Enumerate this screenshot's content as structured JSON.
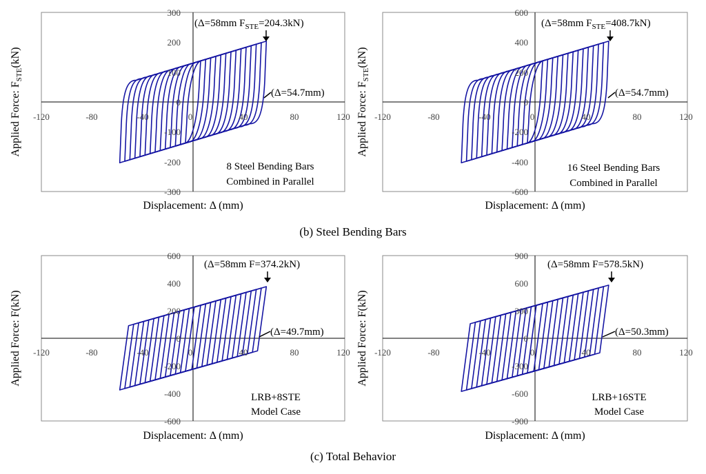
{
  "captions": {
    "steel": "(b) Steel Bending Bars",
    "total": "(c) Total Behavior"
  },
  "colors": {
    "loop": "#1515a3",
    "frame": "#8a8a8a",
    "axis": "#000000"
  },
  "chart_data": [
    {
      "id": "p1",
      "type": "line",
      "title": "",
      "xlabel": "Displacement: Δ (mm)",
      "ylabel_main": "Applied Force: F",
      "ylabel_sub": "STE",
      "ylabel_tail": "(kN)",
      "xlim": [
        -120,
        120
      ],
      "ylim": [
        -300,
        300
      ],
      "xticks": [
        -120,
        -80,
        -40,
        0,
        40,
        80,
        120
      ],
      "yticks": [
        300,
        200,
        100,
        0,
        -100,
        -200,
        -300
      ],
      "annotation_peak": {
        "pre": "(Δ=58mm F",
        "sub": "STE",
        "post": "=204.3kN)"
      },
      "annotation_zero": "(Δ=54.7mm)",
      "note_lines": [
        "8 Steel Bending Bars",
        "Combined in Parallel"
      ],
      "peak": [
        58,
        204.3
      ],
      "zero_cross": 54.7,
      "loop_params": {
        "k": 1.27,
        "b": 130,
        "amplitudes": [
          6,
          10,
          14,
          18,
          22,
          26,
          30,
          34,
          38,
          42,
          46,
          50,
          54,
          58
        ],
        "offset_x": 1,
        "smooth": true
      }
    },
    {
      "id": "p2",
      "type": "line",
      "title": "",
      "xlabel": "Displacement: Δ (mm)",
      "ylabel_main": "Applied Force: F",
      "ylabel_sub": "STE",
      "ylabel_tail": "(kN)",
      "xlim": [
        -120,
        120
      ],
      "ylim": [
        -600,
        600
      ],
      "xticks": [
        -120,
        -80,
        -40,
        0,
        40,
        80,
        120
      ],
      "yticks": [
        600,
        400,
        200,
        0,
        -200,
        -400,
        -600
      ],
      "annotation_peak": {
        "pre": "(Δ=58mm F",
        "sub": "STE",
        "post": "=408.7kN)"
      },
      "annotation_zero": "(Δ=54.7mm)",
      "note_lines": [
        "16 Steel Bending Bars",
        "Combined in Parallel"
      ],
      "peak": [
        58,
        408.7
      ],
      "zero_cross": 54.7,
      "loop_params": {
        "k": 2.54,
        "b": 260,
        "amplitudes": [
          6,
          10,
          14,
          18,
          22,
          26,
          30,
          34,
          38,
          42,
          46,
          50,
          54,
          58
        ],
        "offset_x": 1,
        "smooth": true
      }
    },
    {
      "id": "p3",
      "type": "line",
      "title": "",
      "xlabel": "Displacement: Δ (mm)",
      "ylabel_main": "Applied Force: F(kN)",
      "ylabel_sub": "",
      "ylabel_tail": "",
      "xlim": [
        -120,
        120
      ],
      "ylim": [
        -600,
        600
      ],
      "xticks": [
        -120,
        -80,
        -40,
        0,
        40,
        80,
        120
      ],
      "yticks": [
        600,
        400,
        200,
        0,
        -200,
        -400,
        -600
      ],
      "annotation_peak": {
        "pre": "(Δ=58mm F=374.2kN)",
        "sub": "",
        "post": ""
      },
      "annotation_zero": "(Δ=49.7mm)",
      "note_lines": [
        "LRB+8STE",
        "Model Case"
      ],
      "peak": [
        58,
        374.2
      ],
      "zero_cross": 49.7,
      "loop_params": {
        "k": 2.6,
        "b": 224,
        "amplitudes": [
          6,
          10,
          14,
          18,
          22,
          26,
          30,
          34,
          38,
          42,
          46,
          50,
          54,
          58
        ],
        "offset_x": 3,
        "smooth": false
      }
    },
    {
      "id": "p4",
      "type": "line",
      "title": "",
      "xlabel": "Displacement: Δ (mm)",
      "ylabel_main": "Applied Force: F(kN)",
      "ylabel_sub": "",
      "ylabel_tail": "",
      "xlim": [
        -120,
        120
      ],
      "ylim": [
        -900,
        900
      ],
      "xticks": [
        -120,
        -80,
        -40,
        0,
        40,
        80,
        120
      ],
      "yticks": [
        900,
        600,
        300,
        0,
        -300,
        -600,
        -900
      ],
      "annotation_peak": {
        "pre": "(Δ=58mm F=578.5kN)",
        "sub": "",
        "post": ""
      },
      "annotation_zero": "(Δ=50.3mm)",
      "note_lines": [
        "LRB+16STE",
        "Model Case"
      ],
      "peak": [
        58,
        578.5
      ],
      "zero_cross": 50.3,
      "loop_params": {
        "k": 3.85,
        "b": 355,
        "amplitudes": [
          6,
          10,
          14,
          18,
          22,
          26,
          30,
          34,
          38,
          42,
          46,
          50,
          54,
          58
        ],
        "offset_x": 3,
        "smooth": false
      }
    }
  ]
}
